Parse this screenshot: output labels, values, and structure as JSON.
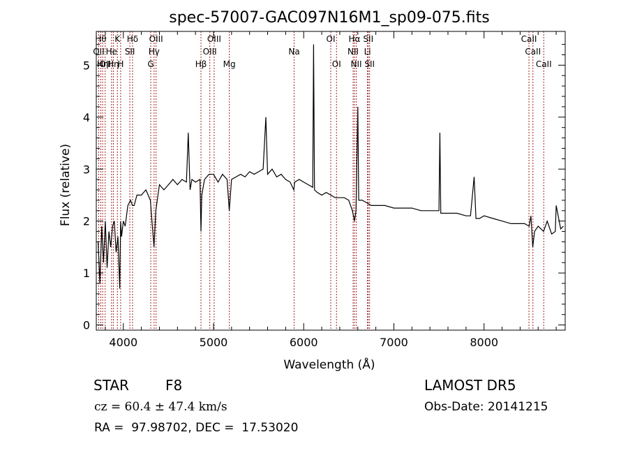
{
  "chart_data": {
    "type": "line",
    "title": "spec-57007-GAC097N16M1_sp09-075.fits",
    "xlabel": "Wavelength (Å)",
    "ylabel": "Flux (relative)",
    "xlim": [
      3700,
      8900
    ],
    "ylim": [
      -0.1,
      5.65
    ],
    "xticks": [
      4000,
      5000,
      6000,
      7000,
      8000
    ],
    "yticks": [
      0,
      1,
      2,
      3,
      4,
      5
    ],
    "grid": false,
    "line_color": "#000000",
    "marker_color": "#a02020",
    "spectrum": {
      "x": [
        3720,
        3740,
        3760,
        3780,
        3800,
        3820,
        3840,
        3860,
        3880,
        3900,
        3920,
        3940,
        3960,
        3970,
        3980,
        4000,
        4020,
        4050,
        4080,
        4100,
        4120,
        4150,
        4200,
        4250,
        4300,
        4340,
        4360,
        4400,
        4450,
        4500,
        4550,
        4600,
        4650,
        4700,
        4720,
        4740,
        4760,
        4800,
        4850,
        4861,
        4870,
        4900,
        4950,
        5000,
        5050,
        5100,
        5150,
        5175,
        5200,
        5250,
        5300,
        5350,
        5400,
        5450,
        5500,
        5550,
        5580,
        5600,
        5650,
        5700,
        5750,
        5800,
        5850,
        5890,
        5900,
        5950,
        6000,
        6050,
        6100,
        6110,
        6120,
        6150,
        6200,
        6250,
        6300,
        6350,
        6400,
        6450,
        6500,
        6540,
        6563,
        6580,
        6600,
        6610,
        6620,
        6650,
        6700,
        6750,
        6800,
        6900,
        7000,
        7100,
        7200,
        7300,
        7400,
        7500,
        7510,
        7520,
        7600,
        7700,
        7800,
        7850,
        7890,
        7910,
        7950,
        8000,
        8100,
        8200,
        8300,
        8400,
        8450,
        8500,
        8520,
        8540,
        8560,
        8600,
        8660,
        8700,
        8750,
        8790,
        8800,
        8850,
        8880
      ],
      "y": [
        1.6,
        0.8,
        1.9,
        1.2,
        2.0,
        1.1,
        1.8,
        1.5,
        1.9,
        2.0,
        1.4,
        1.7,
        0.7,
        2.0,
        1.7,
        2.0,
        1.9,
        2.3,
        2.4,
        2.3,
        2.3,
        2.5,
        2.5,
        2.6,
        2.4,
        1.5,
        2.2,
        2.7,
        2.6,
        2.7,
        2.8,
        2.7,
        2.8,
        2.75,
        3.7,
        2.6,
        2.8,
        2.75,
        2.8,
        1.8,
        2.5,
        2.8,
        2.9,
        2.9,
        2.75,
        2.9,
        2.8,
        2.2,
        2.8,
        2.85,
        2.9,
        2.85,
        2.95,
        2.9,
        2.95,
        3.0,
        4.0,
        2.9,
        3.0,
        2.85,
        2.9,
        2.8,
        2.75,
        2.6,
        2.75,
        2.8,
        2.75,
        2.7,
        2.65,
        5.4,
        2.6,
        2.55,
        2.5,
        2.55,
        2.5,
        2.45,
        2.45,
        2.45,
        2.4,
        2.2,
        2.0,
        2.2,
        4.2,
        2.4,
        2.4,
        2.4,
        2.35,
        2.3,
        2.3,
        2.3,
        2.25,
        2.25,
        2.25,
        2.2,
        2.2,
        2.2,
        3.7,
        2.15,
        2.15,
        2.15,
        2.1,
        2.1,
        2.85,
        2.05,
        2.05,
        2.1,
        2.05,
        2.0,
        1.95,
        1.95,
        1.95,
        1.9,
        2.1,
        1.5,
        1.8,
        1.9,
        1.8,
        2.0,
        1.75,
        1.8,
        2.3,
        1.85,
        1.9
      ]
    },
    "line_markers": [
      {
        "x": 3727,
        "label": "OII",
        "row": 1
      },
      {
        "x": 3750,
        "label": "Hθ",
        "row": 0
      },
      {
        "x": 3771,
        "label": "Hη",
        "row": 2
      },
      {
        "x": 3798,
        "label": "OII",
        "row": 2
      },
      {
        "x": 3869,
        "label": "He",
        "row": 1
      },
      {
        "x": 3889,
        "label": "Hη",
        "row": 2
      },
      {
        "x": 3934,
        "label": "K",
        "row": 0
      },
      {
        "x": 3970,
        "label": "H",
        "row": 2
      },
      {
        "x": 4072,
        "label": "SII",
        "row": 1
      },
      {
        "x": 4102,
        "label": "Hδ",
        "row": 0
      },
      {
        "x": 4304,
        "label": "G",
        "row": 2
      },
      {
        "x": 4341,
        "label": "Hγ",
        "row": 1
      },
      {
        "x": 4363,
        "label": "OIII",
        "row": 0
      },
      {
        "x": 4861,
        "label": "Hβ",
        "row": 2
      },
      {
        "x": 4959,
        "label": "OIII",
        "row": 1
      },
      {
        "x": 5007,
        "label": "OIII",
        "row": 0
      },
      {
        "x": 5175,
        "label": "Mg",
        "row": 2
      },
      {
        "x": 5894,
        "label": "Na",
        "row": 1
      },
      {
        "x": 6300,
        "label": "OI",
        "row": 0
      },
      {
        "x": 6364,
        "label": "OI",
        "row": 2
      },
      {
        "x": 6548,
        "label": "NII",
        "row": 1
      },
      {
        "x": 6563,
        "label": "Hα",
        "row": 0
      },
      {
        "x": 6583,
        "label": "NII",
        "row": 2
      },
      {
        "x": 6707,
        "label": "Li",
        "row": 1
      },
      {
        "x": 6716,
        "label": "SII",
        "row": 0
      },
      {
        "x": 6731,
        "label": "SII",
        "row": 2
      },
      {
        "x": 8498,
        "label": "CaII",
        "row": 0
      },
      {
        "x": 8542,
        "label": "CaII",
        "row": 1
      },
      {
        "x": 8662,
        "label": "CaII",
        "row": 2
      }
    ]
  },
  "info": {
    "class": "STAR",
    "subclass": "F8",
    "velocity": "cz = 60.4 ± 47.4 km/s",
    "coords": "RA =  97.98702, DEC =  17.53020",
    "survey": "LAMOST DR5",
    "obs_date": "Obs-Date: 20141215"
  }
}
